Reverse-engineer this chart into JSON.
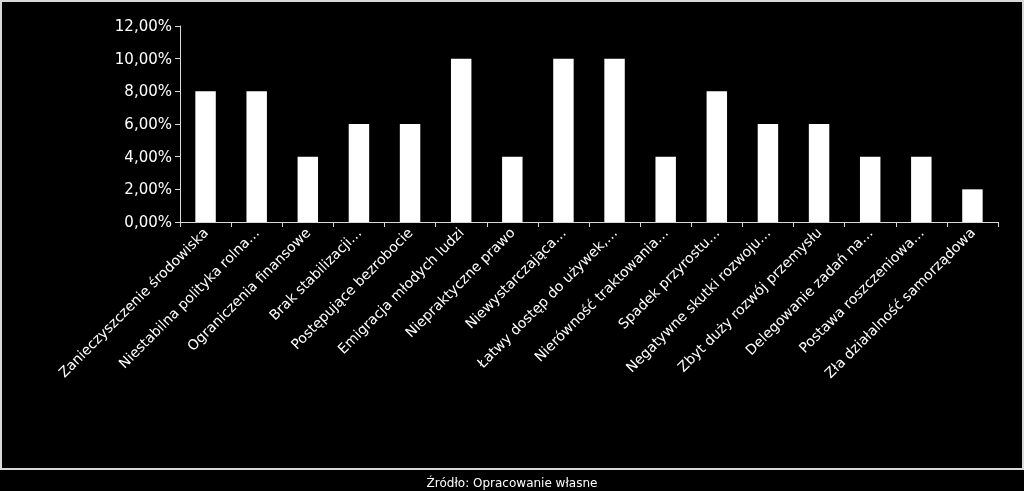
{
  "chart_data": {
    "type": "bar",
    "categories": [
      "Zanieczyszczenie środowiska",
      "Niestabilna polityka rolna…",
      "Ograniczenia finansowe",
      "Brak stabilizacji…",
      "Postępujące bezrobocie",
      "Emigracja młodych ludzi",
      "Niepraktyczne prawo",
      "Niewystarczająca…",
      "Łatwy dostęp do używek,…",
      "Nierówność traktowania…",
      "Spadek przyrostu…",
      "Negatywne skutki rozwoju…",
      "Zbyt duży rozwój przemysłu",
      "Delegowanie zadań na…",
      "Postawa roszczeniowa…",
      "Zła działalność samorządowa"
    ],
    "values": [
      8,
      8,
      4,
      6,
      6,
      10,
      4,
      10,
      10,
      4,
      8,
      6,
      6,
      4,
      4,
      2
    ],
    "color": "#ffffff",
    "ylim": [
      0,
      12
    ],
    "yticks": [
      {
        "value": 0,
        "label": "0,00%"
      },
      {
        "value": 2,
        "label": "2,00%"
      },
      {
        "value": 4,
        "label": "4,00%"
      },
      {
        "value": 6,
        "label": "6,00%"
      },
      {
        "value": 8,
        "label": "8,00%"
      },
      {
        "value": 10,
        "label": "10,00%"
      },
      {
        "value": 12,
        "label": "12,00%"
      }
    ],
    "grid": false,
    "annotations": [
      "Źródło: Opracowanie własne"
    ]
  }
}
